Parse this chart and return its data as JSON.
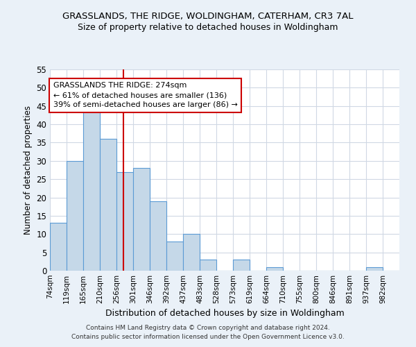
{
  "title": "GRASSLANDS, THE RIDGE, WOLDINGHAM, CATERHAM, CR3 7AL",
  "subtitle": "Size of property relative to detached houses in Woldingham",
  "xlabel": "Distribution of detached houses by size in Woldingham",
  "ylabel": "Number of detached properties",
  "footer_line1": "Contains HM Land Registry data © Crown copyright and database right 2024.",
  "footer_line2": "Contains public sector information licensed under the Open Government Licence v3.0.",
  "annotation_title": "GRASSLANDS THE RIDGE: 274sqm",
  "annotation_line1": "← 61% of detached houses are smaller (136)",
  "annotation_line2": "39% of semi-detached houses are larger (86) →",
  "property_size": 274,
  "categories": [
    "74sqm",
    "119sqm",
    "165sqm",
    "210sqm",
    "256sqm",
    "301sqm",
    "346sqm",
    "392sqm",
    "437sqm",
    "483sqm",
    "528sqm",
    "573sqm",
    "619sqm",
    "664sqm",
    "710sqm",
    "755sqm",
    "800sqm",
    "846sqm",
    "891sqm",
    "937sqm",
    "982sqm"
  ],
  "bin_edges": [
    74,
    119,
    165,
    210,
    256,
    301,
    346,
    392,
    437,
    483,
    528,
    573,
    619,
    664,
    710,
    755,
    800,
    846,
    891,
    937,
    982,
    1027
  ],
  "values": [
    13,
    30,
    44,
    36,
    27,
    28,
    19,
    8,
    10,
    3,
    0,
    3,
    0,
    1,
    0,
    0,
    0,
    0,
    0,
    1,
    0
  ],
  "bar_color": "#c5d8e8",
  "bar_edge_color": "#5b9bd5",
  "vline_color": "#cc0000",
  "vline_x": 274,
  "annotation_box_color": "#ffffff",
  "annotation_box_edge": "#cc0000",
  "grid_color": "#d0d8e4",
  "background_color": "#eaf1f8",
  "axes_bg_color": "#ffffff",
  "ylim": [
    0,
    55
  ],
  "yticks": [
    0,
    5,
    10,
    15,
    20,
    25,
    30,
    35,
    40,
    45,
    50,
    55
  ]
}
